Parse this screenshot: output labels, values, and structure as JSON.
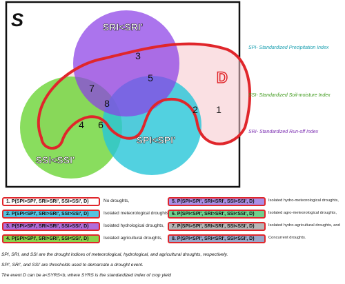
{
  "diagram": {
    "universe_label": "S",
    "sets": {
      "sri": "SRI<SRI'",
      "ssi": "SSI<SSI'",
      "spi": "SPI<SPI'",
      "d": "D"
    },
    "region_numbers": [
      "1",
      "2",
      "3",
      "4",
      "5",
      "6",
      "7",
      "8"
    ],
    "colors": {
      "sri": "#8a3fe6",
      "ssi": "#6fd63a",
      "spi": "#27c6d8",
      "d": "#f6c6cc",
      "d_outline": "#e0262b"
    }
  },
  "legend": [
    {
      "text": "SPI- Standardized Precipitation Index",
      "color": "#1a9fb0"
    },
    {
      "text": "SSI- Standardized Soil-moisture Index",
      "color": "#3f9a1c"
    },
    {
      "text": "SRI- Standardized Run-off Index",
      "color": "#7a2bb0"
    }
  ],
  "table": {
    "left": [
      {
        "formula": "1. P(SPI>SPI', SRI>SRI', SSI>SSI', D)",
        "desc": "No droughts,",
        "fill": "#ffffff"
      },
      {
        "formula": "2. P(SPI<SPI', SRI>SRI', SSI>SSI', D)",
        "desc": "Isolated meteorological droughts,",
        "fill": "#52c3e0"
      },
      {
        "formula": "3. P(SPI>SPI', SRI<SRI', SSI>SSI', D)",
        "desc": "Isolated hydrological droughts,",
        "fill": "#b06cdb"
      },
      {
        "formula": "4. P(SPI>SPI', SRI>SRI', SSI<SSI', D)",
        "desc": "Isolated agricultural droughts,",
        "fill": "#8ad34a"
      }
    ],
    "right": [
      {
        "formula": "5. P(SPI<SPI', SRI<SRI', SSI>SSI', D)",
        "desc": "Isolated hydro-meteorological droughts,",
        "fill": "#a98ee6"
      },
      {
        "formula": "6. P(SPI<SPI', SRI>SRI', SSI<SSI', D)",
        "desc": "Isolated agro-meteorological droughts,",
        "fill": "#6fd08c"
      },
      {
        "formula": "7. P(SPI>SPI', SRI<SRI', SSI<SSI', D)",
        "desc": "Isolated hydro-agricultural droughts, and",
        "fill": "#b6b6b6"
      },
      {
        "formula": "8. P(SPI<SPI', SRI<SRI', SSI<SSI', D)",
        "desc": "Concurrent droughts.",
        "fill": "#9aa6c8"
      }
    ]
  },
  "notes": [
    "SPI, SRI, and SSI are the drought indices of meteorological, hydrological, and agricultural droughts, respectively.",
    "SPI', SRI', and SSI' are thresholds used to  demarcate a drought event.",
    "The event D can be a<SYRS<b, where SYRS is the standardized index of crop yield"
  ]
}
